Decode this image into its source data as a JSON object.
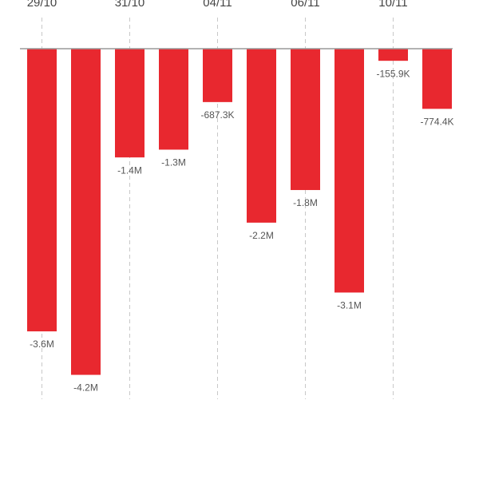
{
  "chart_data": {
    "type": "bar",
    "categories": [
      "29/10",
      null,
      "31/10",
      null,
      "04/11",
      null,
      "06/11",
      null,
      "10/11",
      null
    ],
    "values": [
      -3640000,
      -4200000,
      -1400000,
      -1300000,
      -687300,
      -2240000,
      -1820000,
      -3140000,
      -155900,
      -774400
    ],
    "value_labels": [
      "-3.6M",
      "-4.2M",
      "-1.4M",
      "-1.3M",
      "-687.3K",
      "-2.2M",
      "-1.8M",
      "-3.1M",
      "-155.9K",
      "-774.4K"
    ],
    "color": "#e8282f",
    "ylim": [
      -4400000,
      0
    ]
  }
}
